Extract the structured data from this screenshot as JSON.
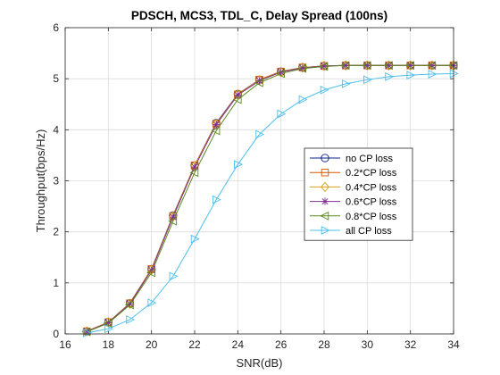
{
  "chart_data": {
    "type": "line",
    "title": "PDSCH, MCS3, TDL_C, Delay Spread (100ns)",
    "xlabel": "SNR(dB)",
    "ylabel": "Throughput(bps/Hz)",
    "xlim": [
      16,
      34
    ],
    "ylim": [
      0,
      6
    ],
    "xticks": [
      "16",
      "18",
      "20",
      "22",
      "24",
      "26",
      "28",
      "30",
      "32",
      "34"
    ],
    "yticks": [
      "0",
      "1",
      "2",
      "3",
      "4",
      "5",
      "6"
    ],
    "grid": true,
    "legend_position": "center-right",
    "x": [
      17,
      18,
      19,
      20,
      21,
      22,
      23,
      24,
      25,
      26,
      27,
      28,
      29,
      30,
      31,
      32,
      33,
      34
    ],
    "series": [
      {
        "name": "no CP loss",
        "color": "#0b1f8f",
        "marker": "circle",
        "values": [
          0.05,
          0.23,
          0.6,
          1.27,
          2.32,
          3.3,
          4.13,
          4.7,
          4.98,
          5.14,
          5.22,
          5.25,
          5.26,
          5.26,
          5.26,
          5.26,
          5.26,
          5.26
        ]
      },
      {
        "name": "0.2*CP loss",
        "color": "#d45500",
        "marker": "square",
        "values": [
          0.05,
          0.23,
          0.6,
          1.27,
          2.31,
          3.3,
          4.12,
          4.69,
          4.98,
          5.14,
          5.22,
          5.25,
          5.26,
          5.26,
          5.26,
          5.26,
          5.26,
          5.26
        ]
      },
      {
        "name": "0.4*CP loss",
        "color": "#d4a017",
        "marker": "diamond",
        "values": [
          0.05,
          0.23,
          0.59,
          1.26,
          2.3,
          3.29,
          4.11,
          4.69,
          4.97,
          5.13,
          5.22,
          5.25,
          5.26,
          5.26,
          5.26,
          5.26,
          5.26,
          5.26
        ]
      },
      {
        "name": "0.6*CP loss",
        "color": "#7e2f8e",
        "marker": "asterisk",
        "values": [
          0.05,
          0.22,
          0.59,
          1.25,
          2.29,
          3.27,
          4.1,
          4.68,
          4.96,
          5.13,
          5.21,
          5.25,
          5.26,
          5.26,
          5.26,
          5.26,
          5.26,
          5.26
        ]
      },
      {
        "name": "0.8*CP loss",
        "color": "#5b8a1e",
        "marker": "triangle-left",
        "values": [
          0.04,
          0.21,
          0.57,
          1.2,
          2.21,
          3.16,
          3.98,
          4.59,
          4.92,
          5.1,
          5.2,
          5.24,
          5.26,
          5.26,
          5.26,
          5.26,
          5.26,
          5.26
        ]
      },
      {
        "name": "all CP loss",
        "color": "#4dbeee",
        "marker": "triangle-right",
        "values": [
          0.02,
          0.1,
          0.28,
          0.61,
          1.13,
          1.86,
          2.63,
          3.32,
          3.91,
          4.31,
          4.59,
          4.78,
          4.9,
          4.98,
          5.04,
          5.07,
          5.09,
          5.1
        ]
      }
    ]
  }
}
